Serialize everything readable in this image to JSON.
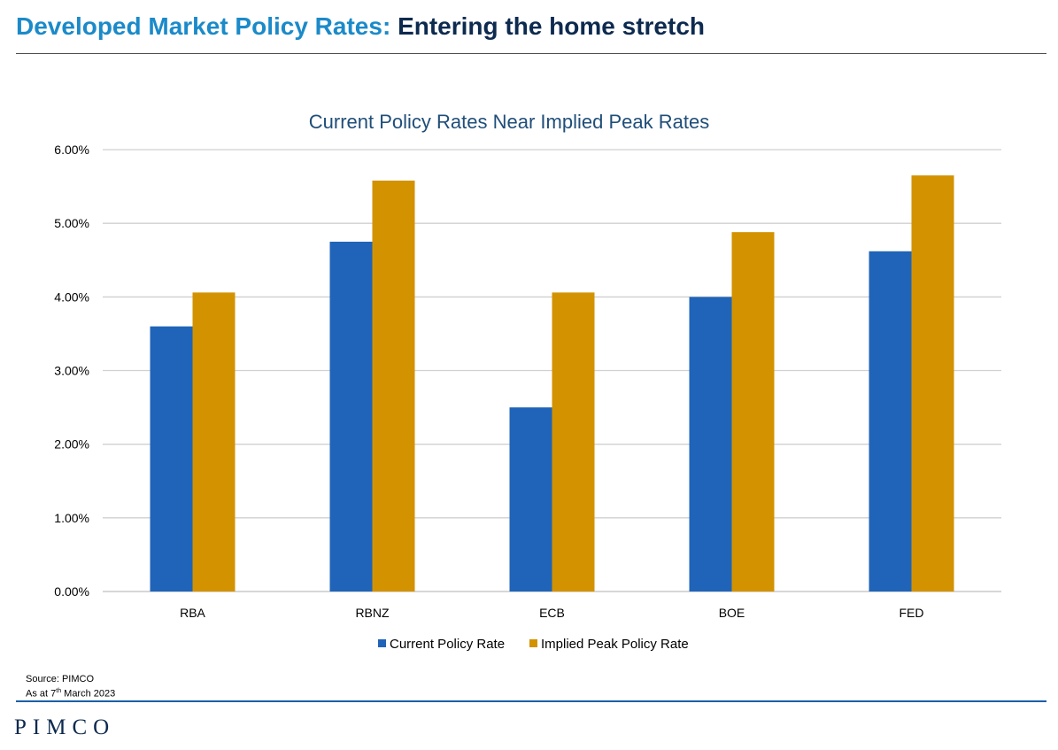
{
  "header": {
    "title_highlight": "Developed Market Policy Rates:",
    "title_rest": "Entering the home stretch"
  },
  "chart_data": {
    "type": "bar",
    "title": "Current Policy Rates Near Implied Peak Rates",
    "categories": [
      "RBA",
      "RBNZ",
      "ECB",
      "BOE",
      "FED"
    ],
    "series": [
      {
        "name": "Current Policy Rate",
        "color": "#1f64b8",
        "values": [
          3.6,
          4.75,
          2.5,
          4.0,
          4.62
        ]
      },
      {
        "name": "Implied Peak Policy Rate",
        "color": "#d39200",
        "values": [
          4.06,
          5.58,
          4.06,
          4.88,
          5.65
        ]
      }
    ],
    "ylim": [
      0,
      6
    ],
    "yticks": [
      0,
      1,
      2,
      3,
      4,
      5,
      6
    ],
    "ytick_labels": [
      "0.00%",
      "1.00%",
      "2.00%",
      "3.00%",
      "4.00%",
      "5.00%",
      "6.00%"
    ],
    "xlabel": "",
    "ylabel": "",
    "grid": true,
    "legend_position": "bottom-center"
  },
  "footer": {
    "source": "Source: PIMCO",
    "date_prefix": "As at 7",
    "date_sup": "th",
    "date_suffix": " March 2023",
    "logo": "PIMCO"
  }
}
